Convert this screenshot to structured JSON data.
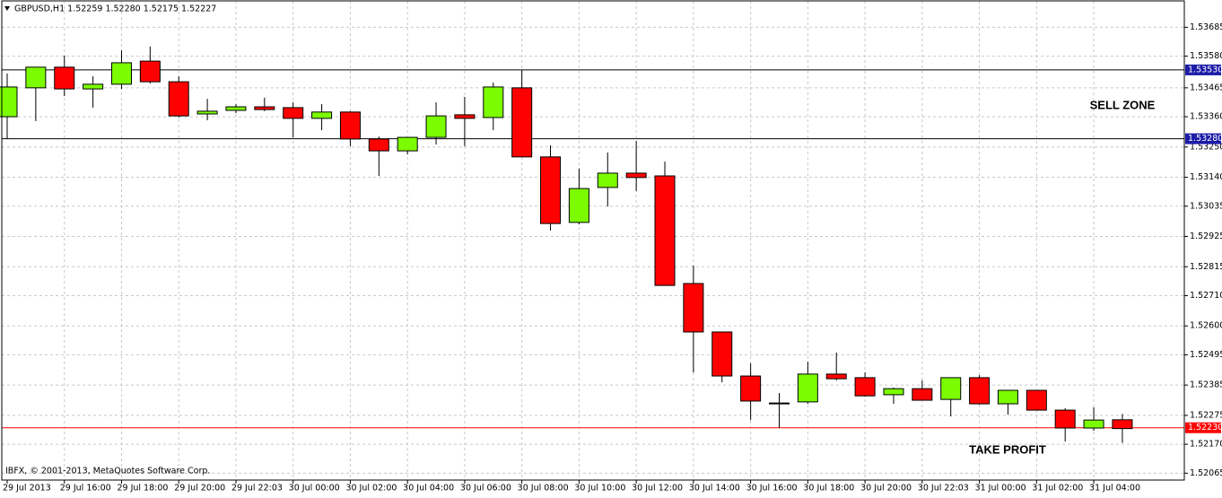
{
  "chart_data": {
    "type": "candlestick",
    "title": "GBPUSD,H1  1.52259 1.52280 1.52175 1.52227",
    "source": "IBFX, © 2001-2013, MetaQuotes Software Corp.",
    "categories": [
      "29 Jul 2013",
      null,
      "29 Jul 16:00",
      null,
      "29 Jul 18:00",
      null,
      "29 Jul 20:00",
      null,
      "29 Jul 22:03",
      null,
      "30 Jul 00:00",
      null,
      "30 Jul 02:00",
      null,
      "30 Jul 04:00",
      null,
      "30 Jul 06:00",
      null,
      "30 Jul 08:00",
      null,
      "30 Jul 10:00",
      null,
      "30 Jul 12:00",
      null,
      "30 Jul 14:00",
      null,
      "30 Jul 16:00",
      null,
      "30 Jul 18:00",
      null,
      "30 Jul 20:00",
      null,
      "30 Jul 22:03",
      null,
      "31 Jul 00:00",
      null,
      "31 Jul 02:00",
      null,
      "31 Jul 04:00",
      null
    ],
    "open": [
      1.5336,
      1.53465,
      1.5354,
      1.53461,
      1.53478,
      1.53562,
      1.53487,
      1.5337,
      1.53383,
      1.53396,
      1.53393,
      1.53354,
      1.53377,
      1.53279,
      1.53236,
      1.53285,
      1.53367,
      1.53357,
      1.53465,
      1.53214,
      1.52976,
      1.53103,
      1.53155,
      1.53145,
      1.52754,
      1.52578,
      1.52418,
      1.5232,
      1.52324,
      1.52425,
      1.52412,
      1.5235,
      1.52372,
      1.52333,
      1.52412,
      1.52317,
      1.52366,
      1.52294,
      1.52229,
      1.52259
    ],
    "high": [
      1.53517,
      1.5354,
      1.53582,
      1.53507,
      1.53601,
      1.53615,
      1.53507,
      1.53425,
      1.53406,
      1.53429,
      1.53412,
      1.53406,
      1.5338,
      1.53288,
      1.53285,
      1.53412,
      1.53432,
      1.53484,
      1.5353,
      1.53256,
      1.53171,
      1.5323,
      1.53272,
      1.53197,
      1.52819,
      1.52578,
      1.52464,
      1.52356,
      1.5247,
      1.52503,
      1.52431,
      1.52376,
      1.52402,
      1.52412,
      1.52421,
      1.52366,
      1.52366,
      1.52301,
      1.52304,
      1.5228
    ],
    "low": [
      1.53279,
      1.53344,
      1.53435,
      1.53393,
      1.53461,
      1.53481,
      1.53357,
      1.53347,
      1.53373,
      1.5338,
      1.53285,
      1.53311,
      1.53253,
      1.53145,
      1.53223,
      1.53259,
      1.53253,
      1.53311,
      1.53214,
      1.52946,
      1.52969,
      1.53034,
      1.5309,
      1.52747,
      1.52431,
      1.52395,
      1.52258,
      1.52229,
      1.52317,
      1.52402,
      1.52343,
      1.52317,
      1.5233,
      1.52271,
      1.52314,
      1.52278,
      1.52294,
      1.5218,
      1.52219,
      1.52175
    ],
    "close": [
      1.53468,
      1.5354,
      1.53461,
      1.53478,
      1.53556,
      1.53487,
      1.53363,
      1.5338,
      1.53396,
      1.53386,
      1.53354,
      1.53377,
      1.53279,
      1.53236,
      1.53285,
      1.53363,
      1.53354,
      1.53468,
      1.53214,
      1.52972,
      1.53099,
      1.53155,
      1.53139,
      1.52747,
      1.52578,
      1.52418,
      1.52327,
      1.5232,
      1.52425,
      1.52408,
      1.52346,
      1.52372,
      1.5233,
      1.52412,
      1.52317,
      1.52366,
      1.52294,
      1.52229,
      1.52258,
      1.52227
    ],
    "up_color": "#7cfc00",
    "down_color": "#ff0000",
    "ylim": [
      1.5204,
      1.53784
    ],
    "yticks": [
      1.53685,
      {
        "value": 1.5358,
        "label": "1.53580"
      },
      1.53465,
      {
        "value": 1.5336,
        "label": "1.53360"
      },
      {
        "value": 1.5325,
        "label": "1.53250"
      },
      {
        "value": 1.5314,
        "label": "1.53140"
      },
      1.53035,
      1.52925,
      1.52815,
      {
        "value": 1.5271,
        "label": "1.52710"
      },
      {
        "value": 1.526,
        "label": "1.52600"
      },
      1.52495,
      1.52385,
      1.52275,
      {
        "value": 1.5217,
        "label": "1.52170"
      },
      1.52065
    ],
    "grid": true,
    "hlines": [
      {
        "value": 1.5353,
        "label": "1.53530",
        "color": "#000000",
        "tag_color": "#1c1ca8"
      },
      {
        "value": 1.5328,
        "label": "1.53280",
        "color": "#000000",
        "tag_color": "#1c1ca8"
      },
      {
        "value": 1.5223,
        "label": "1.52230",
        "color": "#ff0000",
        "tag_color": "#ff0000"
      }
    ],
    "annotations": [
      "SELL ZONE",
      "TAKE PROFIT"
    ]
  }
}
